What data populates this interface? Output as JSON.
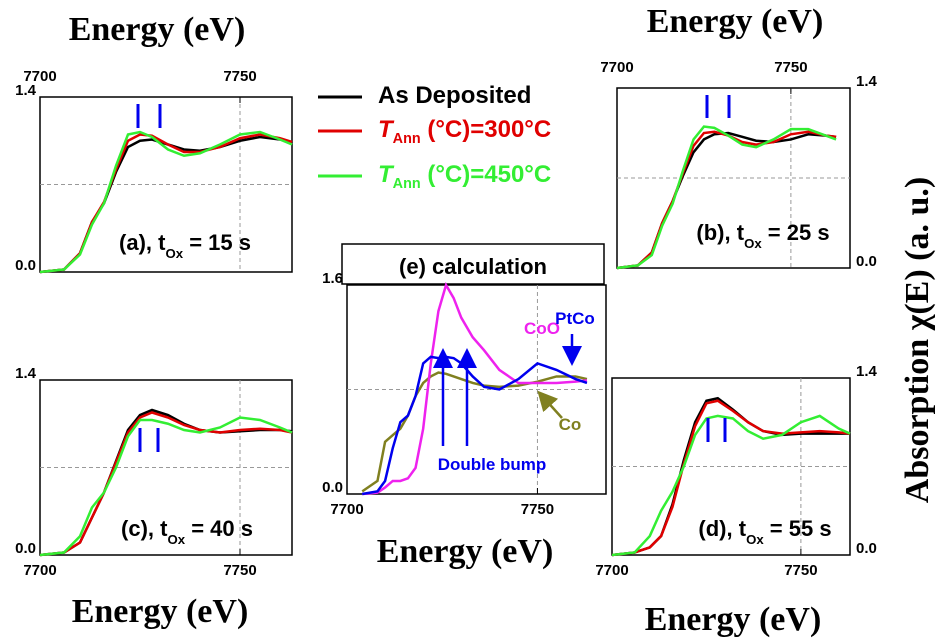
{
  "chart_data": [
    {
      "type": "line",
      "title": [
        "(a), t",
        "Ox",
        " = 15 s"
      ],
      "xlabel": "Energy (eV)",
      "xaxis_side": "top",
      "yaxis_side": "left",
      "xlim": [
        7700,
        7763
      ],
      "xticks": [
        7700,
        7750
      ],
      "ylim": [
        0,
        1.4
      ],
      "yticks": [
        {
          "value": 0,
          "label": "0.0"
        },
        1.4
      ],
      "xgrid": [
        7750
      ],
      "ygrid": [
        0.7
      ],
      "x": [
        7700,
        7706,
        7710,
        7713,
        7716,
        7719,
        7722,
        7725,
        7728,
        7732,
        7736,
        7740,
        7745,
        7750,
        7755,
        7760,
        7763
      ],
      "series": [
        {
          "name": [
            "As Deposited"
          ],
          "color": "#000000",
          "values": [
            0,
            0.02,
            0.15,
            0.4,
            0.55,
            0.8,
            1.0,
            1.05,
            1.06,
            1.02,
            0.98,
            0.97,
            1.0,
            1.05,
            1.08,
            1.06,
            1.04
          ]
        },
        {
          "name": [
            "T",
            "Ann",
            " (°C)=300°C"
          ],
          "color": "#e00000",
          "values": [
            0,
            0.02,
            0.15,
            0.4,
            0.56,
            0.82,
            1.05,
            1.1,
            1.09,
            1.02,
            0.96,
            0.96,
            1.0,
            1.07,
            1.1,
            1.07,
            1.04
          ]
        },
        {
          "name": [
            "T",
            "Ann",
            " (°C)=450°C"
          ],
          "color": "#33ee33",
          "values": [
            0,
            0.02,
            0.14,
            0.38,
            0.55,
            0.85,
            1.1,
            1.12,
            1.08,
            0.98,
            0.93,
            0.95,
            1.02,
            1.1,
            1.12,
            1.06,
            1.02
          ]
        }
      ]
    },
    {
      "type": "line",
      "title": [
        "(b), t",
        "Ox",
        " = 25 s"
      ],
      "xlabel": "Energy (eV)",
      "ylabel": "Absorption χ(E) (a. u.)",
      "xaxis_side": "top",
      "yaxis_side": "right",
      "xlim": [
        7700,
        7767
      ],
      "xticks": [
        7700,
        7750
      ],
      "ylim": [
        0,
        1.4
      ],
      "yticks": [
        {
          "value": 0,
          "label": "0.0"
        },
        1.4
      ],
      "xgrid": [
        7750
      ],
      "ygrid": [
        0.7
      ],
      "x": [
        7700,
        7706,
        7710,
        7713,
        7716,
        7719,
        7722,
        7725,
        7728,
        7732,
        7736,
        7740,
        7745,
        7750,
        7755,
        7760,
        7763
      ],
      "series": [
        {
          "color": "#000000",
          "values": [
            0,
            0.02,
            0.12,
            0.35,
            0.52,
            0.72,
            0.9,
            1.0,
            1.04,
            1.05,
            1.02,
            0.99,
            0.98,
            1.0,
            1.04,
            1.03,
            1.02
          ]
        },
        {
          "color": "#e00000",
          "values": [
            0,
            0.02,
            0.12,
            0.35,
            0.52,
            0.74,
            0.95,
            1.05,
            1.06,
            1.03,
            0.98,
            0.96,
            0.98,
            1.04,
            1.06,
            1.03,
            1.02
          ]
        },
        {
          "color": "#33ee33",
          "values": [
            0,
            0.02,
            0.1,
            0.33,
            0.5,
            0.76,
            1.0,
            1.1,
            1.09,
            1.03,
            0.96,
            0.94,
            1.0,
            1.08,
            1.08,
            1.03,
            1.0
          ]
        }
      ]
    },
    {
      "type": "line",
      "title": [
        "(c), t",
        "Ox",
        " = 40 s"
      ],
      "xlabel": "Energy (eV)",
      "xaxis_side": "bottom",
      "yaxis_side": "left",
      "xlim": [
        7700,
        7763
      ],
      "xticks": [
        7700,
        7750
      ],
      "ylim": [
        0,
        1.4
      ],
      "yticks": [
        {
          "value": 0,
          "label": "0.0"
        },
        1.4
      ],
      "xgrid": [
        7750
      ],
      "ygrid": [
        0.7
      ],
      "x": [
        7700,
        7706,
        7710,
        7713,
        7716,
        7719,
        7722,
        7725,
        7728,
        7732,
        7736,
        7740,
        7745,
        7750,
        7755,
        7760,
        7763
      ],
      "series": [
        {
          "color": "#000000",
          "values": [
            0,
            0.02,
            0.1,
            0.3,
            0.5,
            0.75,
            1.0,
            1.12,
            1.16,
            1.12,
            1.05,
            1.0,
            0.98,
            0.99,
            1.0,
            1.0,
            0.99
          ]
        },
        {
          "color": "#e00000",
          "values": [
            0,
            0.02,
            0.1,
            0.3,
            0.5,
            0.74,
            0.98,
            1.1,
            1.14,
            1.1,
            1.04,
            1.0,
            0.98,
            1.0,
            1.01,
            1.0,
            0.98
          ]
        },
        {
          "color": "#33ee33",
          "values": [
            0,
            0.02,
            0.15,
            0.38,
            0.5,
            0.7,
            0.95,
            1.08,
            1.08,
            1.05,
            1.0,
            0.98,
            1.02,
            1.1,
            1.08,
            1.02,
            0.98
          ]
        }
      ]
    },
    {
      "type": "line",
      "title": [
        "(d), t",
        "Ox",
        " = 55 s"
      ],
      "xlabel": "Energy (eV)",
      "xaxis_side": "bottom",
      "yaxis_side": "right",
      "xlim": [
        7700,
        7763
      ],
      "xticks": [
        7700,
        7750
      ],
      "ylim": [
        0,
        1.4
      ],
      "yticks": [
        {
          "value": 0,
          "label": "0.0"
        },
        1.4
      ],
      "xgrid": [
        7750
      ],
      "ygrid": [
        0.7
      ],
      "x": [
        7700,
        7706,
        7710,
        7713,
        7716,
        7719,
        7722,
        7725,
        7728,
        7732,
        7736,
        7740,
        7745,
        7750,
        7755,
        7760,
        7763
      ],
      "series": [
        {
          "color": "#000000",
          "values": [
            0,
            0.02,
            0.06,
            0.15,
            0.4,
            0.75,
            1.05,
            1.22,
            1.24,
            1.15,
            1.05,
            0.98,
            0.95,
            0.96,
            0.96,
            0.96,
            0.96
          ]
        },
        {
          "color": "#e00000",
          "values": [
            0,
            0.02,
            0.06,
            0.15,
            0.38,
            0.72,
            1.02,
            1.2,
            1.22,
            1.14,
            1.05,
            0.98,
            0.96,
            0.97,
            0.98,
            0.97,
            0.96
          ]
        },
        {
          "color": "#33ee33",
          "values": [
            0,
            0.02,
            0.15,
            0.35,
            0.5,
            0.7,
            0.95,
            1.08,
            1.1,
            1.08,
            0.98,
            0.92,
            0.95,
            1.05,
            1.1,
            1.0,
            0.96
          ]
        }
      ]
    },
    {
      "type": "line",
      "title": [
        "(e) calculation"
      ],
      "xlabel": "Energy (eV)",
      "xaxis_side": "bottom",
      "yaxis_side": "left",
      "xlim": [
        7700,
        7768
      ],
      "xticks": [
        7700,
        7750
      ],
      "ylim": [
        0,
        1.6
      ],
      "yticks": [
        {
          "value": 0,
          "label": "0.0"
        },
        1.6
      ],
      "xgrid": [
        7750
      ],
      "ygrid": [
        0.8
      ],
      "x": [
        7704,
        7708,
        7710,
        7712,
        7714,
        7716,
        7718,
        7720,
        7722,
        7724,
        7726,
        7728,
        7730,
        7733,
        7736,
        7740,
        7745,
        7750,
        7755,
        7760,
        7763
      ],
      "series": [
        {
          "color": "#808020",
          "values": [
            0.02,
            0.1,
            0.4,
            0.45,
            0.5,
            0.6,
            0.75,
            0.85,
            0.9,
            0.93,
            0.92,
            0.9,
            0.88,
            0.85,
            0.83,
            0.82,
            0.83,
            0.86,
            0.9,
            0.9,
            0.88
          ]
        },
        {
          "color": "#ee22ee",
          "values": [
            0,
            0.01,
            0.05,
            0.1,
            0.1,
            0.12,
            0.2,
            0.5,
            1.0,
            1.4,
            1.6,
            1.5,
            1.35,
            1.2,
            1.1,
            0.95,
            0.85,
            0.85,
            0.85,
            0.86,
            0.87
          ]
        },
        {
          "color": "#0000ee",
          "values": [
            0,
            0.02,
            0.1,
            0.35,
            0.55,
            0.6,
            0.75,
            1.0,
            1.05,
            1.04,
            1.05,
            1.04,
            1.0,
            0.9,
            0.82,
            0.8,
            0.88,
            1.0,
            0.95,
            0.88,
            0.85
          ]
        }
      ],
      "annotations": [
        {
          "text": "CoO",
          "color": "#ee22ee"
        },
        {
          "text": "PtCo",
          "color": "#0000ee"
        },
        {
          "text": "Co",
          "color": "#808020"
        },
        {
          "text": "Double bump",
          "color": "#0000ee"
        }
      ]
    }
  ]
}
